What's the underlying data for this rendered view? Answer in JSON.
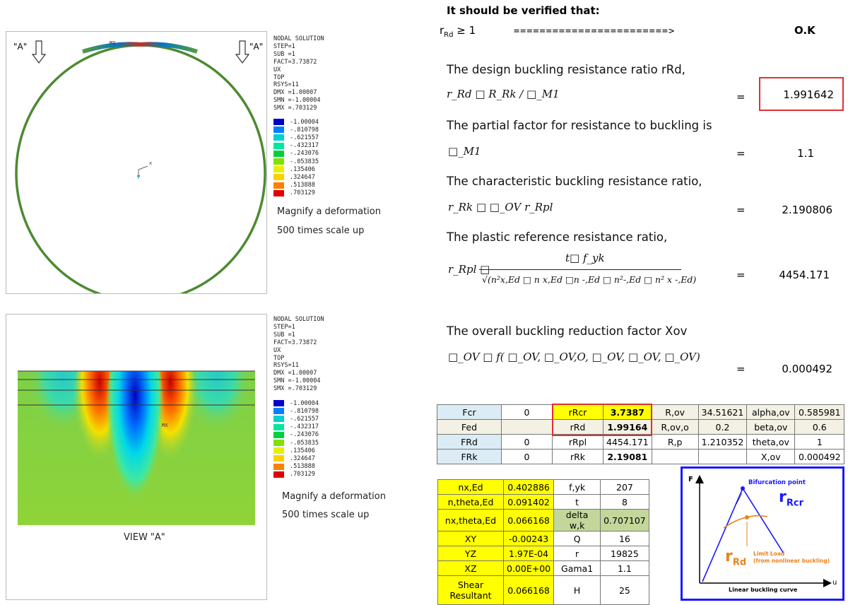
{
  "left_top": {
    "marker_left": "\"A\"",
    "marker_right": "\"A\"",
    "mx_label": "MX",
    "legend_header": [
      "NODAL SOLUTION",
      "STEP=1",
      "SUB =1",
      "FACT=3.73872",
      "UX",
      "TOP",
      "RSYS=11",
      "DMX =1.00007",
      "SMN =-1.00004",
      "SMX =.703129"
    ],
    "legend_values": [
      "-1.00004",
      "-.810798",
      "-.621557",
      "-.432317",
      "-.243076",
      "-.053835",
      ".135406",
      ".324647",
      ".513888",
      ".703129"
    ],
    "legend_colors": [
      "#0000cc",
      "#0080ff",
      "#00d0d0",
      "#00e8a0",
      "#00d040",
      "#80e000",
      "#e8f000",
      "#ffd000",
      "#ff8000",
      "#e00000"
    ],
    "caption1": "Magnify a deformation",
    "caption2": "500 times scale up"
  },
  "left_bottom": {
    "legend_header": [
      "NODAL SOLUTION",
      "STEP=1",
      "SUB =1",
      "FACT=3.73872",
      "UX",
      "TOP",
      "RSYS=11",
      "DMX =1.00007",
      "SMN =-1.00004",
      "SMX =.703129"
    ],
    "legend_values": [
      "-1.00004",
      "-.810798",
      "-.621557",
      "-.432317",
      "-.243076",
      "-.053835",
      ".135406",
      ".324647",
      ".513888",
      ".703129"
    ],
    "mx_label": "MX",
    "view_label": "VIEW \"A\"",
    "caption1": "Magnify a deformation",
    "caption2": "500 times scale up"
  },
  "right": {
    "heading": "It should be verified that:",
    "check_lhs": "r",
    "check_sub": "Rd",
    "check_op": " ≥ 1",
    "check_arrow": "========================>",
    "check_result": "O.K",
    "s1": "The design buckling resistance ratio rRd,",
    "f1": "r_Rd □ R_Rk / □_M1",
    "v1": "1.991642",
    "s2": "The partial factor for resistance to buckling is",
    "f2": "□_M1",
    "v2": "1.1",
    "s3": "The characteristic buckling resistance ratio,",
    "f3": "r_Rk □ □_OV r_Rpl",
    "v3": "2.190806",
    "s4": "The plastic reference resistance ratio,",
    "f4_num": "t□ f_yk",
    "f4_lhs": "r_Rpl □",
    "f4_den": "√(n²x,Ed □ n x,Ed □n -,Ed □ n²-,Ed □ n² x -,Ed)",
    "v4": "4454.171",
    "s5": "The overall buckling reduction factor Xov",
    "f5": "□_OV □ f( □_OV, □_OV,O, □_OV, □_OV, □_OV)",
    "v5": "0.000492",
    "eq": "="
  },
  "table1": [
    [
      "Fcr",
      "0",
      "rRcr",
      "3.7387",
      "R,ov",
      "34.51621",
      "alpha,ov",
      "0.585981"
    ],
    [
      "Fed",
      "",
      "rRd",
      "1.99164",
      "R,ov,o",
      "0.2",
      "beta,ov",
      "0.6"
    ],
    [
      "FRd",
      "0",
      "rRpl",
      "4454.171",
      "R,p",
      "1.210352",
      "theta,ov",
      "1"
    ],
    [
      "FRk",
      "0",
      "rRk",
      "2.19081",
      "",
      "",
      "X,ov",
      "0.000492"
    ]
  ],
  "table2": [
    [
      "nx,Ed",
      "0.402886",
      "f,yk",
      "207"
    ],
    [
      "n,theta,Ed",
      "0.091402",
      "t",
      "8"
    ],
    [
      "nx,theta,Ed",
      "0.066168",
      "delta w,k",
      "0.707107"
    ],
    [
      "XY",
      "-0.00243",
      "Q",
      "16"
    ],
    [
      "YZ",
      "1.97E-04",
      "r",
      "19825"
    ],
    [
      "XZ",
      "0.00E+00",
      "Gama1",
      "1.1"
    ],
    [
      "Shear Resultant",
      "0.066168",
      "H",
      "25"
    ]
  ],
  "diagram": {
    "y_axis": "F",
    "x_axis": "u",
    "bifurcation": "Bifurcation point",
    "rRcr": "r",
    "rRcr_sub": "Rcr",
    "rRd": "r",
    "rRd_sub": "Rd",
    "limit1": "Limit Load",
    "limit2": "(from nonlinear buckling)",
    "caption": "Linear buckling curve",
    "colors": {
      "blue": "#1a1aff",
      "orange": "#e8821e"
    }
  }
}
